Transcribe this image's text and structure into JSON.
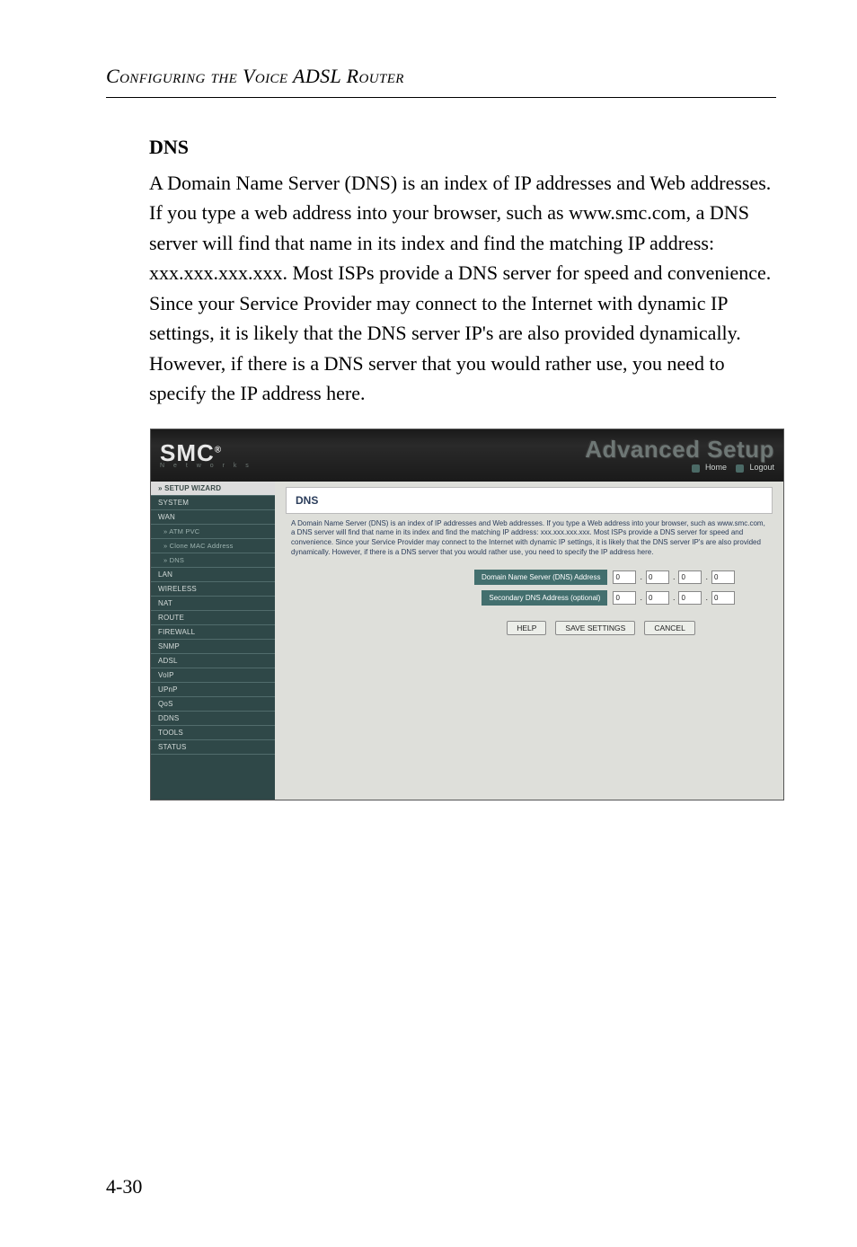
{
  "page": {
    "running_header": "Configuring the Voice ADSL Router",
    "page_number": "4-30"
  },
  "doc": {
    "title": "DNS",
    "paragraph": "A Domain Name Server (DNS) is an index of IP addresses and Web addresses. If you type a web address into your browser, such as www.smc.com, a DNS server will find that name in its index and find the matching IP address: xxx.xxx.xxx.xxx. Most ISPs provide a DNS server for speed and convenience. Since your Service Provider may connect to the Internet with dynamic IP settings, it is likely that the DNS server IP's are also provided dynamically. However, if there is a DNS server that you would rather use, you need to specify the IP address here."
  },
  "screenshot": {
    "logo": {
      "main": "SMC",
      "sub": "N e t w o r k s",
      "reg": "®"
    },
    "banner_title": "Advanced Setup",
    "top_links": {
      "home": "Home",
      "logout": "Logout"
    },
    "sidebar": {
      "items": [
        {
          "label": "» SETUP WIZARD",
          "type": "top"
        },
        {
          "label": "SYSTEM",
          "type": "item"
        },
        {
          "label": "WAN",
          "type": "item"
        },
        {
          "label": "» ATM PVC",
          "type": "sub"
        },
        {
          "label": "» Clone MAC Address",
          "type": "sub"
        },
        {
          "label": "» DNS",
          "type": "sub"
        },
        {
          "label": "LAN",
          "type": "item"
        },
        {
          "label": "WIRELESS",
          "type": "item"
        },
        {
          "label": "NAT",
          "type": "item"
        },
        {
          "label": "ROUTE",
          "type": "item"
        },
        {
          "label": "FIREWALL",
          "type": "item"
        },
        {
          "label": "SNMP",
          "type": "item"
        },
        {
          "label": "ADSL",
          "type": "item"
        },
        {
          "label": "VoIP",
          "type": "item"
        },
        {
          "label": "UPnP",
          "type": "item"
        },
        {
          "label": "QoS",
          "type": "item"
        },
        {
          "label": "DDNS",
          "type": "item"
        },
        {
          "label": "TOOLS",
          "type": "item"
        },
        {
          "label": "STATUS",
          "type": "item"
        }
      ]
    },
    "panel": {
      "title": "DNS",
      "description": "A Domain Name Server (DNS) is an index of IP addresses and Web addresses. If you type a Web address into your browser, such as www.smc.com, a DNS server will find that name in its index and find the matching IP address: xxx.xxx.xxx.xxx. Most ISPs provide a DNS server for speed and convenience. Since your Service Provider may connect to the Internet with dynamic IP settings, it is likely that the DNS server IP's are also provided dynamically. However, if there is a DNS server that you would rather use, you need to specify the IP address here.",
      "fields": {
        "primary": {
          "label": "Domain Name Server (DNS) Address",
          "octets": [
            "0",
            "0",
            "0",
            "0"
          ]
        },
        "secondary": {
          "label": "Secondary DNS Address (optional)",
          "octets": [
            "0",
            "0",
            "0",
            "0"
          ]
        }
      },
      "buttons": {
        "help": "HELP",
        "save": "SAVE SETTINGS",
        "cancel": "CANCEL"
      }
    },
    "colors": {
      "sidebar_bg": "#2f4848",
      "sidebar_border": "#516c6c",
      "sidebar_text": "#d5dcda",
      "sidebar_sub_text": "#9cb2af",
      "main_bg": "#dedfda",
      "label_bg": "#436f6e",
      "link_text": "#2b3d5b"
    }
  }
}
